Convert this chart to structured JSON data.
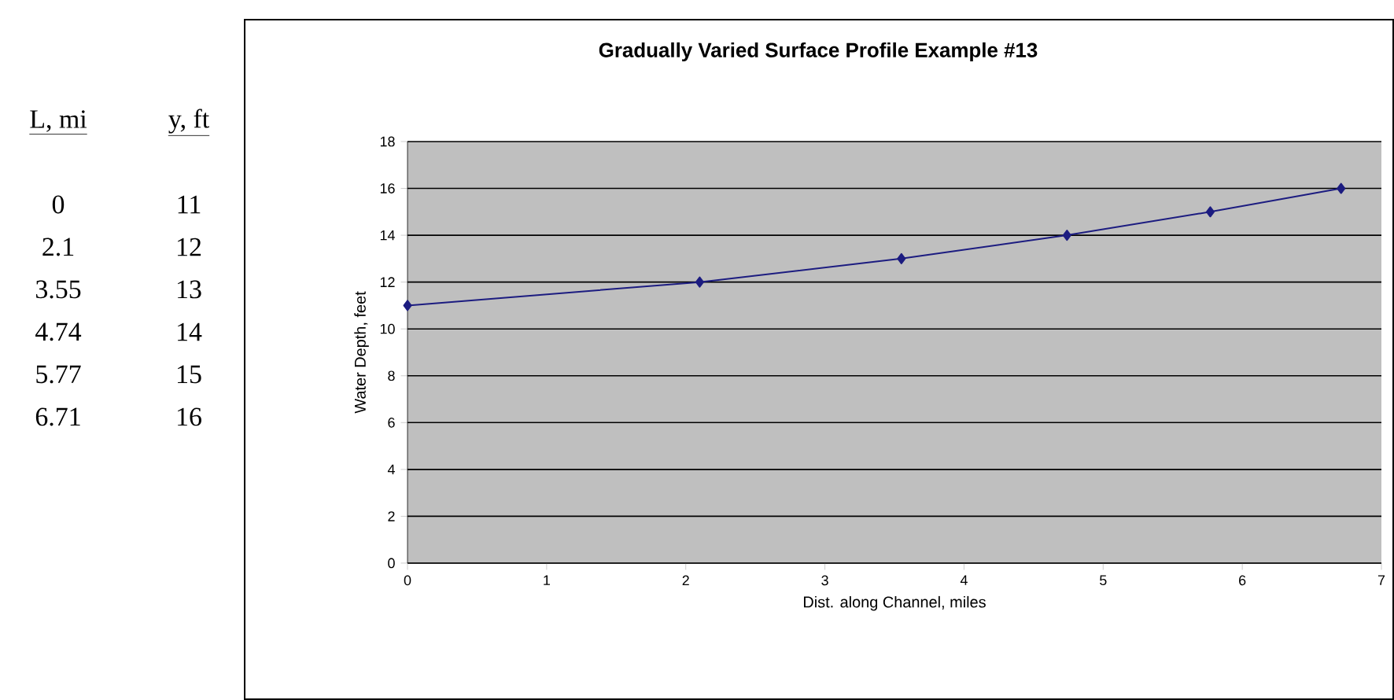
{
  "chart_data": {
    "type": "line",
    "title": "Gradually Varied Surface Profile Example #13",
    "xlabel": "Dist. along Channel, miles",
    "ylabel": "Water Depth, feet",
    "x": [
      0,
      2.1,
      3.55,
      4.74,
      5.77,
      6.71
    ],
    "series": [
      {
        "color": "#1c1c80",
        "values": [
          11,
          12,
          13,
          14,
          15,
          16
        ]
      }
    ],
    "xlim": [
      0,
      7
    ],
    "xticks": [
      0,
      1,
      2,
      3,
      4,
      5,
      6,
      7
    ],
    "ylim": [
      0,
      18
    ],
    "yticks": [
      0,
      2,
      4,
      6,
      8,
      10,
      12,
      14,
      16,
      18
    ],
    "grid": "y",
    "marker": "diamond",
    "line_style": "solid",
    "annotations": [
      "L, mi",
      "y, ft",
      "0",
      "11",
      "2.1",
      "12",
      "3.55",
      "13",
      "4.74",
      "14",
      "5.77",
      "15",
      "6.71",
      "16"
    ]
  }
}
